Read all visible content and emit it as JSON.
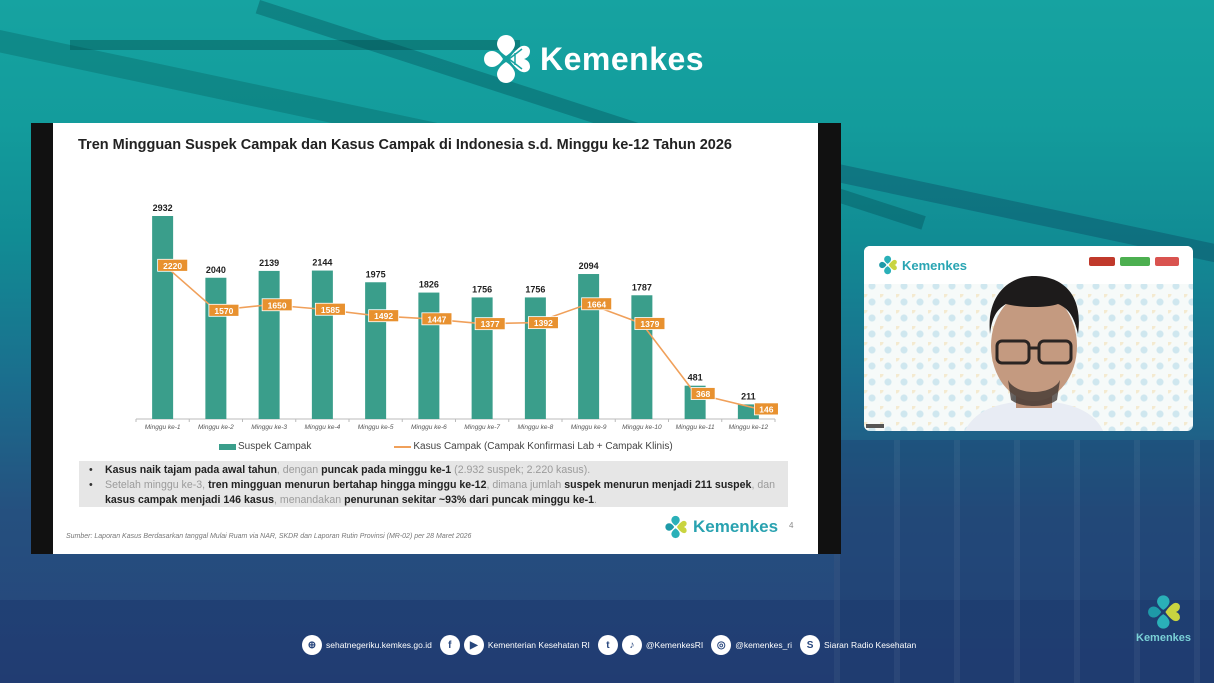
{
  "header": {
    "brand": "Kemenkes"
  },
  "slide": {
    "title": "Tren Mingguan Suspek Campak dan Kasus Campak di Indonesia s.d. Minggu ke-12 Tahun 2026",
    "legend": {
      "bars": "Suspek Campak",
      "line": "Kasus Campak (Campak Konfirmasi Lab + Campak Klinis)"
    },
    "notes": [
      {
        "b1": "Kasus naik tajam pada awal tahun",
        "t1": ", dengan ",
        "b2": "puncak pada minggu ke-1",
        "t2": " (2.932 suspek; 2.220 kasus)."
      },
      {
        "t1": "Setelah minggu ke-3, ",
        "b1": "tren mingguan menurun bertahap hingga minggu ke-12",
        "t2": ", dimana jumlah ",
        "b2": "suspek menurun menjadi 211 suspek",
        "t3": ", dan ",
        "b3": "kasus campak menjadi 146 kasus",
        "t4": ", menandakan ",
        "b4": "penurunan sekitar ~93% dari puncak minggu ke-1",
        "t5": "."
      }
    ],
    "source": "Sumber: Laporan Kasus Berdasarkan tanggal Mulai Ruam via NAR, SKDR dan Laporan Rutin Provinsi (MR-02) per 28 Maret 2026",
    "brand": "Kemenkes",
    "page_number": "4"
  },
  "chart_data": {
    "type": "bar",
    "title": "Tren Mingguan Suspek Campak dan Kasus Campak di Indonesia s.d. Minggu ke-12 Tahun 2026",
    "categories": [
      "Minggu ke-1",
      "Minggu ke-2",
      "Minggu ke-3",
      "Minggu ke-4",
      "Minggu ke-5",
      "Minggu ke-6",
      "Minggu ke-7",
      "Minggu ke-8",
      "Minggu ke-9",
      "Minggu ke-10",
      "Minggu ke-11",
      "Minggu ke-12"
    ],
    "series": [
      {
        "name": "Suspek Campak",
        "type": "bar",
        "color": "#3a9e8b",
        "values": [
          2932,
          2040,
          2139,
          2144,
          1975,
          1826,
          1756,
          1756,
          2094,
          1787,
          481,
          211
        ]
      },
      {
        "name": "Kasus Campak (Campak Konfirmasi Lab + Campak Klinis)",
        "type": "line",
        "color": "#f0a05a",
        "label_bg": "#e8912f",
        "values": [
          2220,
          1570,
          1650,
          1585,
          1492,
          1447,
          1377,
          1392,
          1664,
          1379,
          368,
          146
        ]
      }
    ],
    "xlabel": "",
    "ylabel": "",
    "ylim": [
      0,
      3000
    ],
    "grid": false,
    "legend_position": "bottom"
  },
  "webcam": {
    "brand": "Kemenkes"
  },
  "footer": {
    "items": [
      {
        "icon": "globe-icon",
        "glyph": "⊕",
        "text": "sehatnegeriku.kemkes.go.id"
      },
      {
        "icon": "facebook-icon",
        "glyph": "f",
        "text": ""
      },
      {
        "icon": "youtube-icon",
        "glyph": "▶",
        "text": "Kementerian Kesehatan RI"
      },
      {
        "icon": "twitter-icon",
        "glyph": "t",
        "text": ""
      },
      {
        "icon": "tiktok-icon",
        "glyph": "♪",
        "text": "@KemenkesRI"
      },
      {
        "icon": "instagram-icon",
        "glyph": "◎",
        "text": "@kemenkes_ri"
      },
      {
        "icon": "radio-icon",
        "glyph": "S",
        "text": "Siaran Radio Kesehatan"
      }
    ],
    "corner_brand": "Kemenkes"
  }
}
